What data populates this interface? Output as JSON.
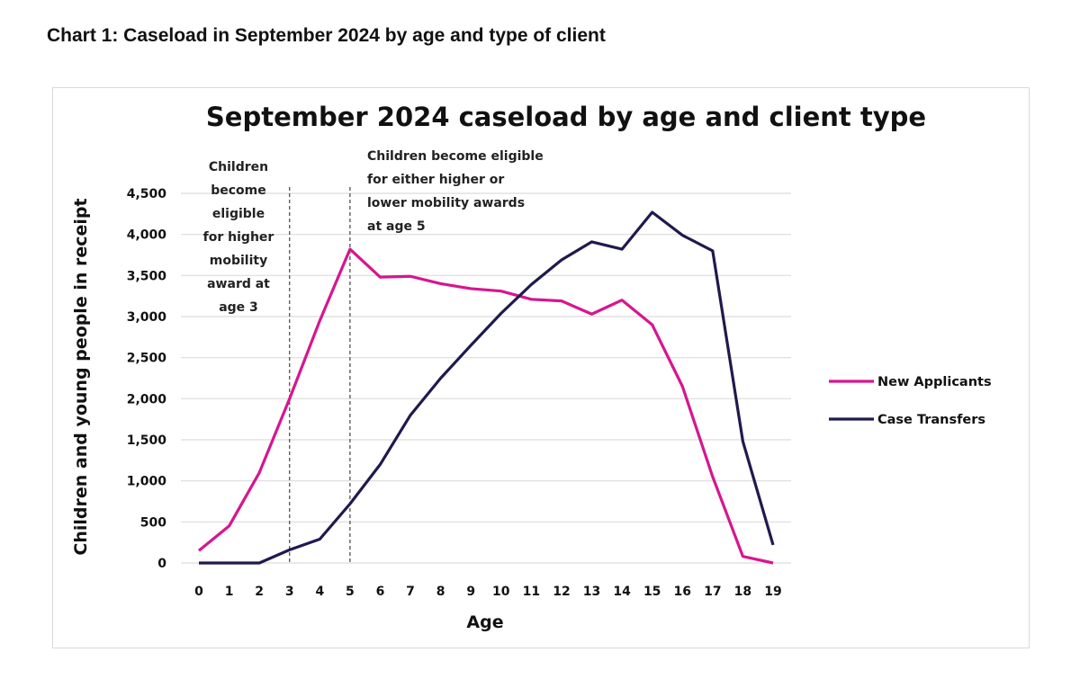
{
  "caption": "Chart 1: Caseload in September 2024 by age and type of client",
  "chart_data": {
    "type": "line",
    "title": "September 2024 caseload by age and client type",
    "xlabel": "Age",
    "ylabel": "Children and young people in receipt",
    "x": [
      0,
      1,
      2,
      3,
      4,
      5,
      6,
      7,
      8,
      9,
      10,
      11,
      12,
      13,
      14,
      15,
      16,
      17,
      18,
      19
    ],
    "ylim": [
      0,
      4500
    ],
    "yticks": [
      "0",
      "500",
      "1,000",
      "1,500",
      "2,000",
      "2,500",
      "3,000",
      "3,500",
      "4,000",
      "4,500"
    ],
    "ytick_values": [
      0,
      500,
      1000,
      1500,
      2000,
      2500,
      3000,
      3500,
      4000,
      4500
    ],
    "grid": true,
    "legend_position": "right",
    "series": [
      {
        "name": "New Applicants",
        "color": "#d6168f",
        "values": [
          150,
          450,
          1100,
          2000,
          2950,
          3820,
          3480,
          3490,
          3400,
          3340,
          3310,
          3210,
          3190,
          3030,
          3200,
          2900,
          2150,
          1050,
          80,
          0
        ]
      },
      {
        "name": "Case Transfers",
        "color": "#1f1a4d",
        "values": [
          0,
          0,
          0,
          160,
          290,
          720,
          1200,
          1800,
          2250,
          2650,
          3040,
          3390,
          3690,
          3910,
          3820,
          4270,
          3990,
          3800,
          1480,
          220
        ]
      }
    ],
    "annotations": [
      {
        "x": 3,
        "lines": [
          "Children",
          "become",
          "eligible",
          "for higher",
          "mobility",
          "award at",
          "age 3"
        ]
      },
      {
        "x": 5,
        "lines": [
          "Children become eligible",
          "for either higher or",
          "lower  mobility awards",
          "at age 5"
        ]
      }
    ]
  }
}
